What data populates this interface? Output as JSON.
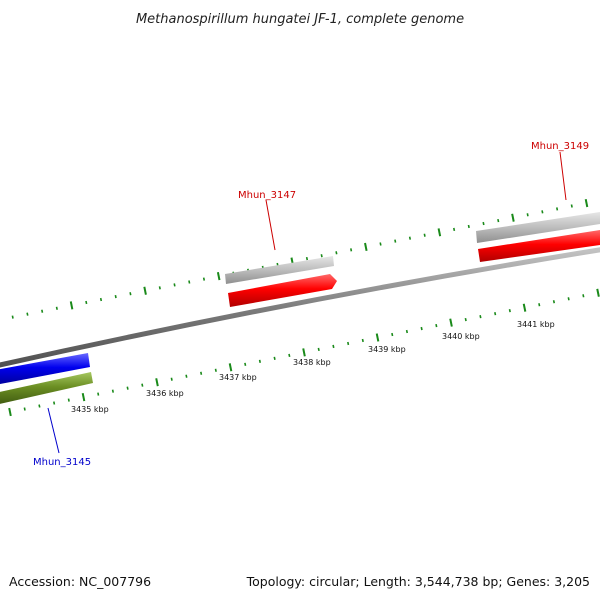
{
  "title": "Methanospirillum hungatei JF-1, complete genome",
  "footer": {
    "accession": "Accession: NC_007796",
    "summary": "Topology: circular; Length: 3,544,738 bp; Genes: 3,205"
  },
  "colors": {
    "background": "#ffffff",
    "backbone": "#808080",
    "tick": "#1a8a1a",
    "forward_gene": "#ff0000",
    "forward_gene_label": "#cc0000",
    "reverse_gene": "#0000ee",
    "reverse_gene_label": "#0000cc",
    "olive_gene": "#6b8e23",
    "shadow_gene": "#b8b8b8"
  },
  "scale": {
    "unit": "kbp",
    "labels": [
      "3435 kbp",
      "3436 kbp",
      "3437 kbp",
      "3438 kbp",
      "3439 kbp",
      "3440 kbp",
      "3441 kbp"
    ]
  },
  "genes": [
    {
      "id": "gene-mhun-3145",
      "label": "Mhun_3145",
      "strand": "reverse",
      "color_key": "reverse_gene"
    },
    {
      "id": "gene-mhun-3147",
      "label": "Mhun_3147",
      "strand": "forward",
      "color_key": "forward_gene"
    },
    {
      "id": "gene-mhun-3149",
      "label": "Mhun_3149",
      "strand": "forward",
      "color_key": "forward_gene"
    }
  ]
}
